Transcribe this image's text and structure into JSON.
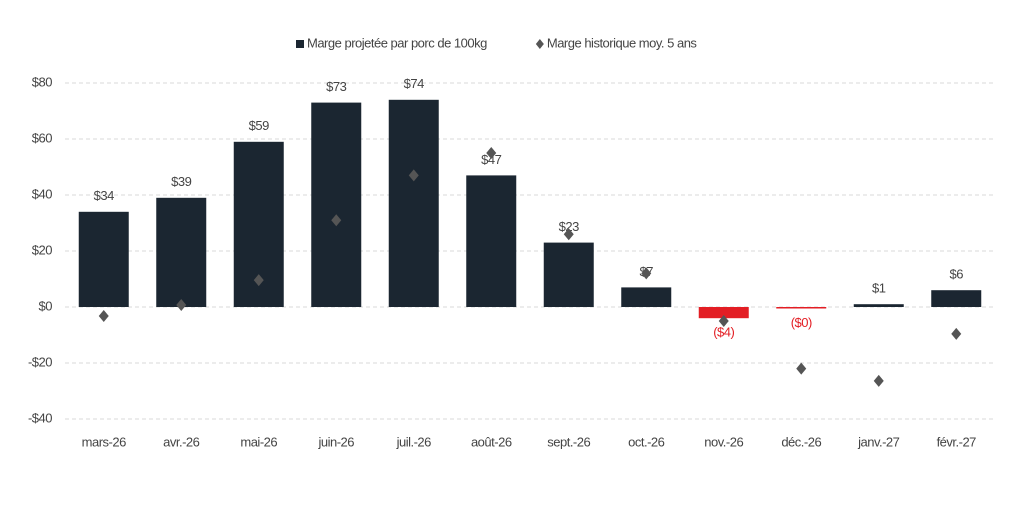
{
  "chart_data": {
    "type": "bar",
    "categories": [
      "mars-26",
      "avr.-26",
      "mai-26",
      "juin-26",
      "juil.-26",
      "août-26",
      "sept.-26",
      "oct.-26",
      "nov.-26",
      "déc.-26",
      "janv.-27",
      "févr.-27"
    ],
    "series": [
      {
        "name": "Marge projetée par porc de 100kg",
        "type": "bar",
        "color": "#1b2631",
        "negative_color": "#e31e24",
        "values": [
          34,
          39,
          59,
          73,
          74,
          47,
          23,
          7,
          -4,
          -0.4,
          1,
          6
        ],
        "value_labels": [
          "$34",
          "$39",
          "$59",
          "$73",
          "$74",
          "$47",
          "$23",
          "$7",
          "($4)",
          "($0)",
          "$1",
          "$6"
        ]
      },
      {
        "name": "Marge historique moy. 5 ans",
        "type": "scatter",
        "color": "#555555",
        "values": [
          -3.2,
          0.7,
          9.6,
          31,
          47,
          55,
          26,
          12,
          -5,
          -22,
          -26.4,
          -9.6
        ]
      }
    ],
    "ylim": [
      -40,
      80
    ],
    "yticks": [
      {
        "value": -40,
        "label": "-$40"
      },
      {
        "value": -20,
        "label": "-$20"
      },
      {
        "value": 0,
        "label": "$0"
      },
      {
        "value": 20,
        "label": "$20"
      },
      {
        "value": 40,
        "label": "$40"
      },
      {
        "value": 60,
        "label": "$60"
      },
      {
        "value": 80,
        "label": "$80"
      }
    ],
    "grid": true,
    "legend": "top"
  }
}
